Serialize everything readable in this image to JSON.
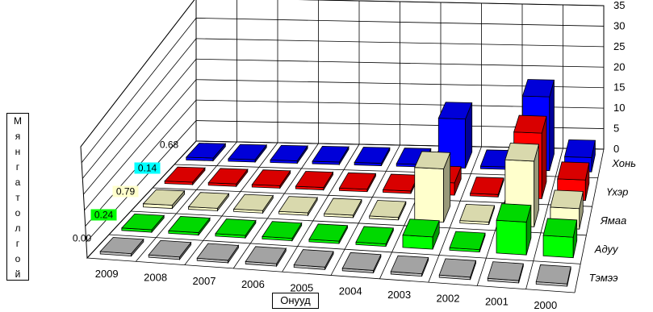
{
  "chart_data": {
    "type": "bar",
    "subtype": "3d-grouped-bar",
    "xlabel": "Онууд",
    "ylabel": "Мянга толгой",
    "zlim": [
      0,
      35
    ],
    "z_ticks": [
      "0",
      "5",
      "10",
      "15",
      "20",
      "25",
      "30",
      "35"
    ],
    "categories": [
      "2009",
      "2008",
      "2007",
      "2006",
      "2005",
      "2004",
      "2003",
      "2002",
      "2001",
      "2000"
    ],
    "series": [
      {
        "name": "Хонь",
        "color": "#0000ff",
        "values": [
          0.68,
          0.5,
          0.5,
          0.5,
          0.5,
          0.5,
          12,
          0.5,
          18,
          3.5
        ],
        "label": "0.68"
      },
      {
        "name": "Үхэр",
        "color": "#ff0000",
        "values": [
          0.14,
          0.3,
          0.3,
          0.3,
          0.3,
          0.3,
          3,
          0.3,
          16,
          5
        ],
        "label": "0.14"
      },
      {
        "name": "Ямаа",
        "color": "#ffffcc",
        "values": [
          0.79,
          0.3,
          0.3,
          0.3,
          0.3,
          0.3,
          13,
          0.5,
          16,
          5
        ],
        "label": "0.79"
      },
      {
        "name": "Адуу",
        "color": "#00ff00",
        "values": [
          0.24,
          0.3,
          0.3,
          0.3,
          0.3,
          0.3,
          3,
          0.3,
          8,
          5
        ],
        "label": "0.24"
      },
      {
        "name": "Тэмээ",
        "color": "#c0c0c0",
        "values": [
          0.0,
          0.3,
          0.3,
          0.3,
          0.3,
          0.3,
          0.3,
          0.3,
          0.3,
          0.3
        ],
        "label": "0.00"
      }
    ],
    "grid": true,
    "legend": "right",
    "series_label_colors": [
      "#ffffff",
      "#00ffff",
      "#ffffcc",
      "#00ff00",
      "#ffffff"
    ]
  }
}
